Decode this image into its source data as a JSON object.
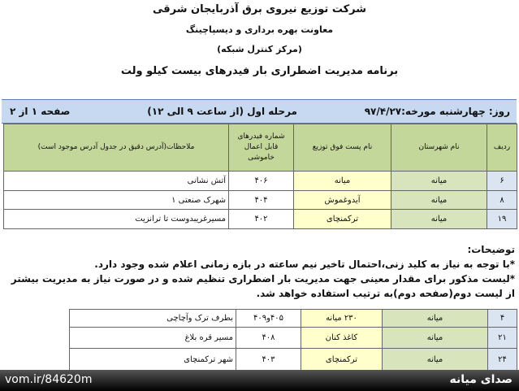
{
  "header": {
    "company": "شرکت توزیع نیروی برق آذربایجان شرقی",
    "deputy": "معاونت بهره برداری و دیسپاچینگ",
    "center": "(مرکز کنترل شبکه)",
    "title": "برنامه مدیریت اضطراری بار فیدرهای بیست کیلو ولت"
  },
  "info_bar": {
    "day": "روز: چهارشنبه  مورخه:۹۷/۴/۲۷",
    "stage": "مرحله اول (از ساعت ۹ الی ۱۲)",
    "page": "صفحه ۱ از ۲"
  },
  "table": {
    "columns": [
      "ردیف",
      "نام شهرستان",
      "نام پست فوق توزیع",
      "شماره فیدرهای قابل اعمال خاموشی",
      "ملاحظات(آدرس دقیق در جدول آدرس موجود است)"
    ],
    "rows": [
      [
        "۶",
        "میانه",
        "میانه",
        "۴۰۶",
        "آتش نشانی"
      ],
      [
        "۸",
        "میانه",
        "آیدوغموش",
        "۴۰۴",
        "شهرک صنعتی ۱"
      ],
      [
        "۱۹",
        "میانه",
        "ترکمنچای",
        "۴۰۲",
        "مسیرغریبدوست تا ترانزیت"
      ]
    ]
  },
  "notes": {
    "title": "توضیحات:",
    "items": [
      "*با توجه به نیاز به کلید زنی،احتمال تاخیر  نیم ساعته در بازه زمانی اعلام شده وجود دارد.",
      "*لیست مذکور برای مقدار معینی جهت مدیریت بار اضطراری تنظیم شده و در صورت نیاز به مدیریت بیشتر از لیست دوم(صفحه دوم)به ترتیب استفاده خواهد شد."
    ]
  },
  "table2": {
    "rows": [
      [
        "۴",
        "میانه",
        "۲۳۰ میانه",
        "۴۰۵و۴۰۹",
        "بطرف ترک وآچاچی"
      ],
      [
        "۲۱",
        "میانه",
        "کاغذ کنان",
        "۴۰۸",
        "مسیر قره بلاغ"
      ],
      [
        "۲۴",
        "میانه",
        "ترکمنچای",
        "۴۰۳",
        "شهر ترکمنچای"
      ]
    ]
  },
  "watermark": {
    "url": "vom.ir/84620m",
    "brand": "صدای میانه"
  }
}
